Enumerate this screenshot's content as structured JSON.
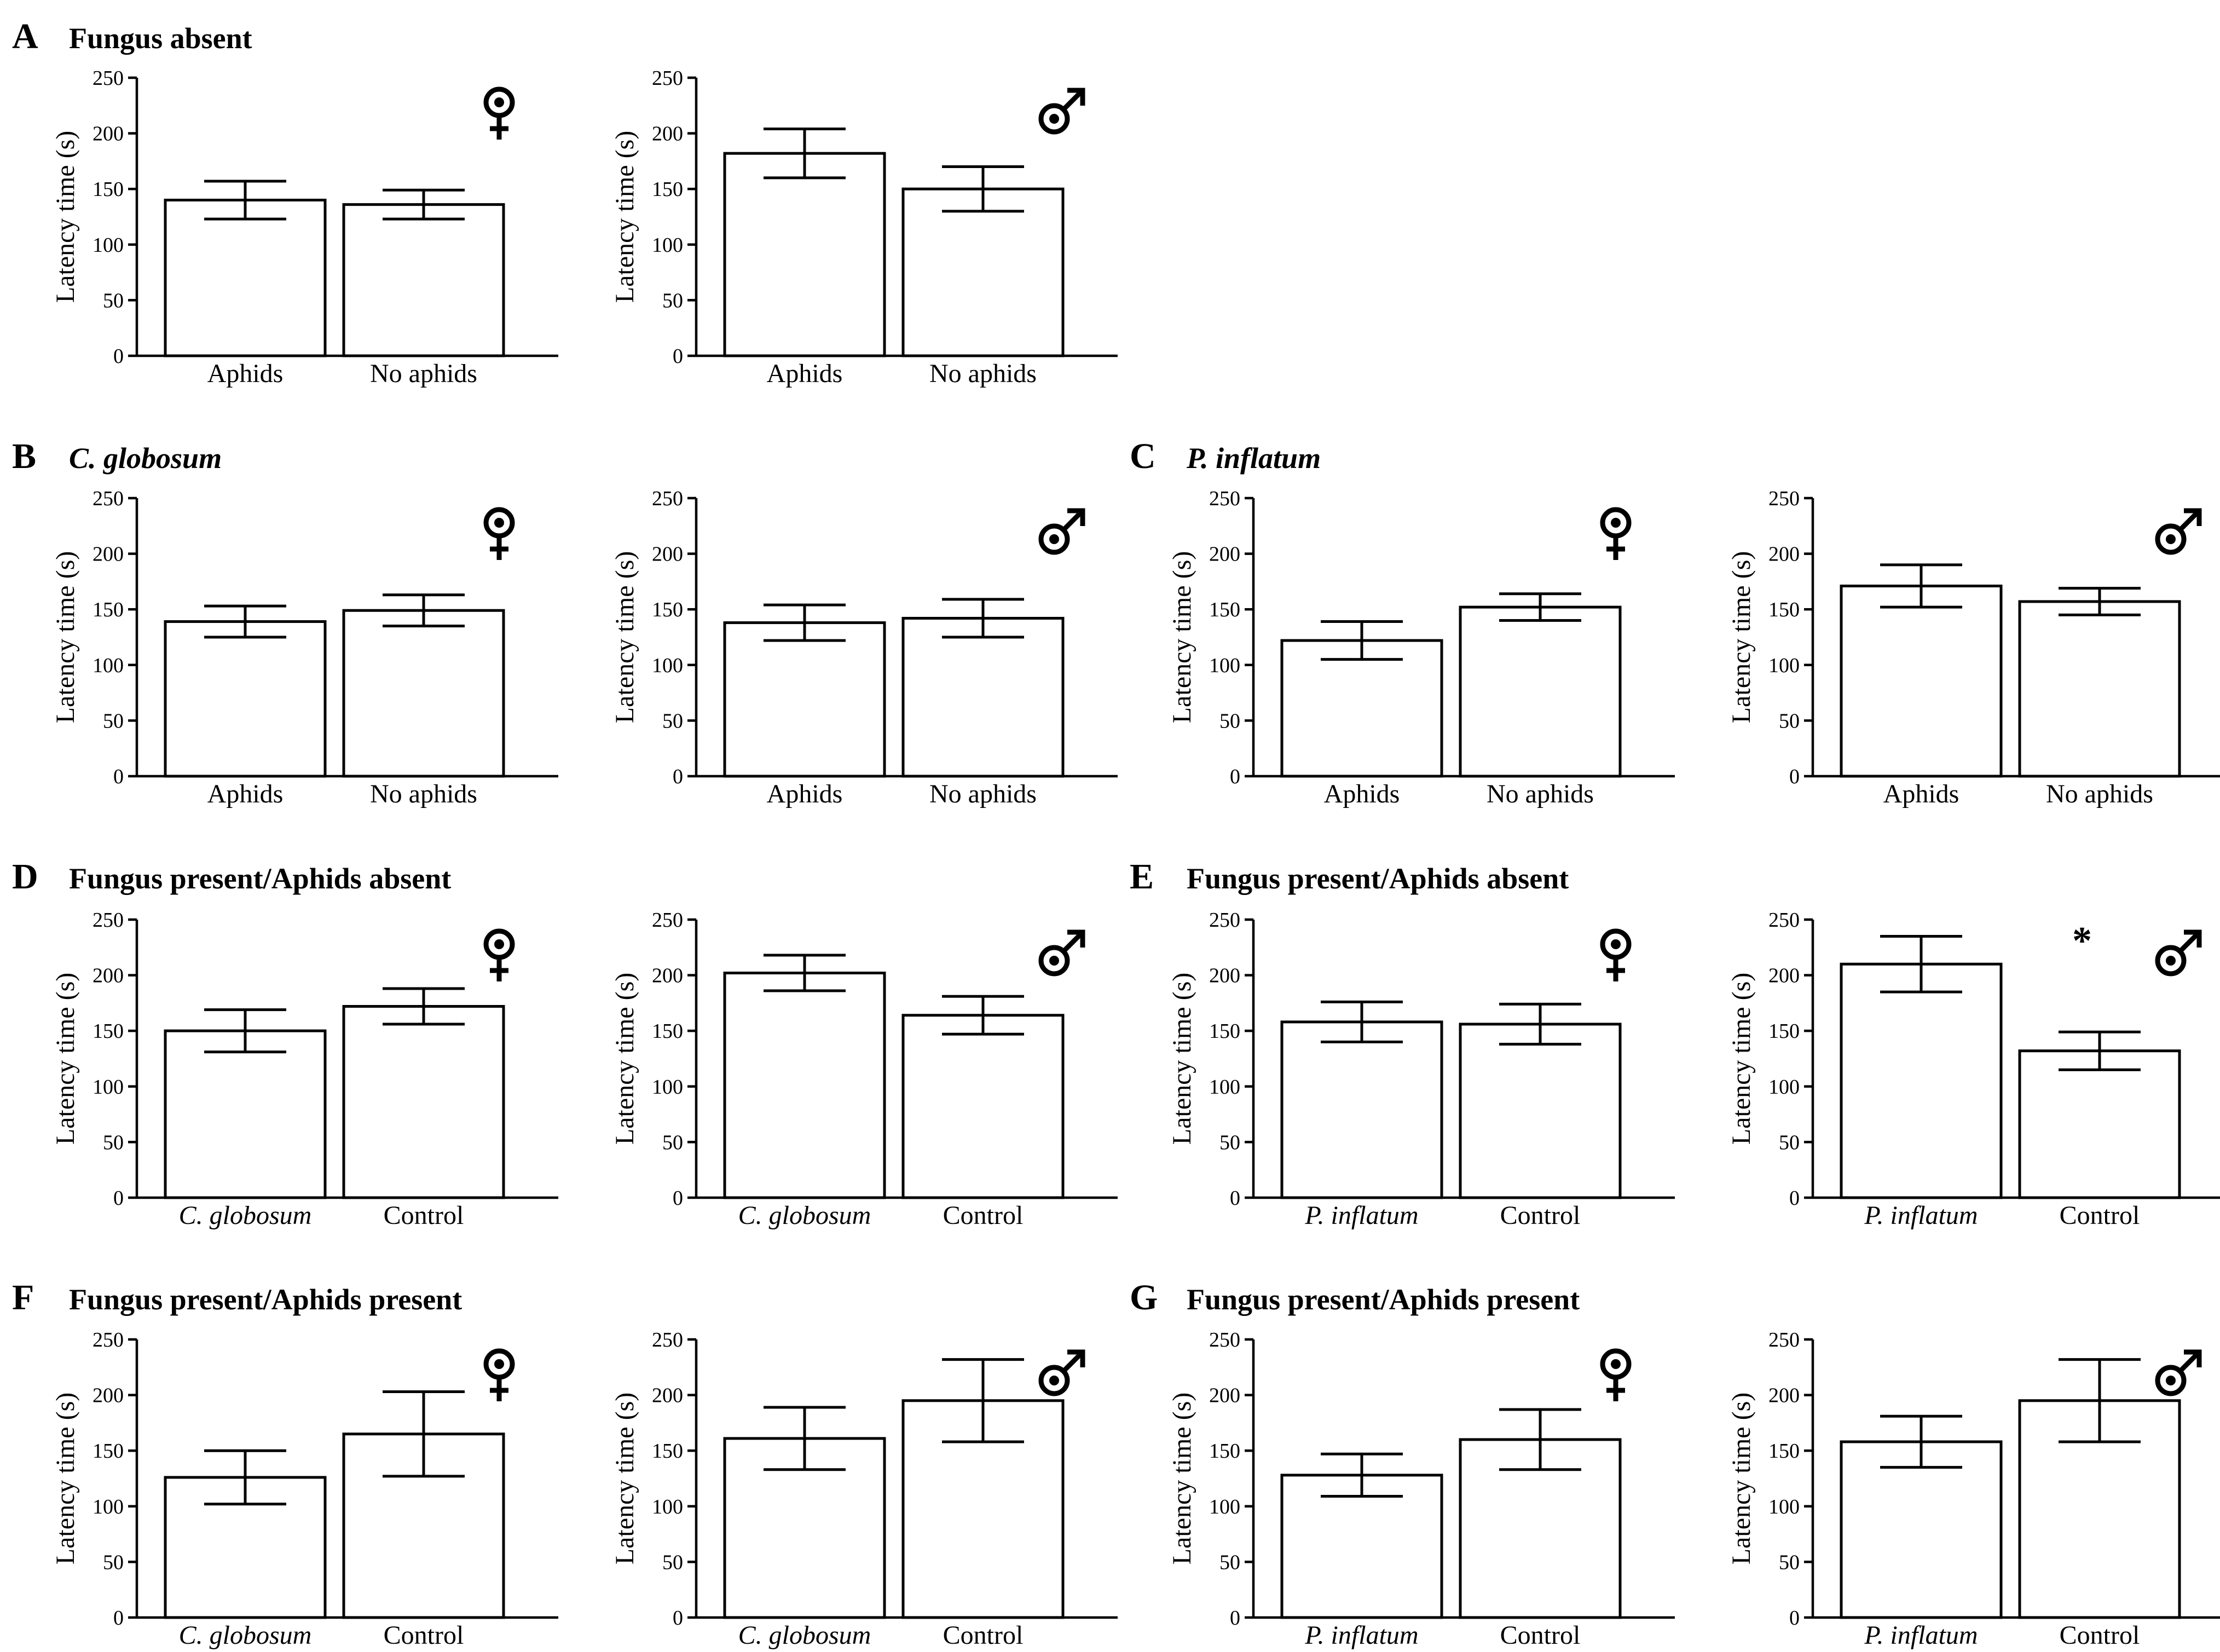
{
  "figure": {
    "y_axis_label": "Latency time (s)",
    "y_ticks": [
      0,
      50,
      100,
      150,
      200,
      250
    ],
    "panels": [
      {
        "letter": "A",
        "title": "Fungus absent",
        "title_italic": false
      },
      {
        "letter": "B",
        "title": "C. globosum",
        "title_italic": true
      },
      {
        "letter": "C",
        "title": "P. inflatum",
        "title_italic": true
      },
      {
        "letter": "D",
        "title": "Fungus present/Aphids absent",
        "title_italic": false
      },
      {
        "letter": "E",
        "title": "Fungus present/Aphids absent",
        "title_italic": false
      },
      {
        "letter": "F",
        "title": "Fungus present/Aphids present",
        "title_italic": false
      },
      {
        "letter": "G",
        "title": "Fungus present/Aphids present",
        "title_italic": false
      }
    ]
  },
  "chart_data": [
    {
      "id": "A-female",
      "panel": "A",
      "sex": "female",
      "type": "bar",
      "ylim": [
        0,
        250
      ],
      "ylabel": "Latency time (s)",
      "categories": [
        "Aphids",
        "No aphids"
      ],
      "italic_categories": [
        false,
        false
      ],
      "values": [
        140,
        136
      ],
      "errors": [
        17,
        13
      ],
      "significance": ""
    },
    {
      "id": "A-male",
      "panel": "A",
      "sex": "male",
      "type": "bar",
      "ylim": [
        0,
        250
      ],
      "ylabel": "Latency time (s)",
      "categories": [
        "Aphids",
        "No aphids"
      ],
      "italic_categories": [
        false,
        false
      ],
      "values": [
        182,
        150
      ],
      "errors": [
        22,
        20
      ],
      "significance": ""
    },
    {
      "id": "B-female",
      "panel": "B",
      "sex": "female",
      "type": "bar",
      "ylim": [
        0,
        250
      ],
      "ylabel": "Latency time (s)",
      "categories": [
        "Aphids",
        "No aphids"
      ],
      "italic_categories": [
        false,
        false
      ],
      "values": [
        139,
        149
      ],
      "errors": [
        14,
        14
      ],
      "significance": ""
    },
    {
      "id": "B-male",
      "panel": "B",
      "sex": "male",
      "type": "bar",
      "ylim": [
        0,
        250
      ],
      "ylabel": "Latency time (s)",
      "categories": [
        "Aphids",
        "No aphids"
      ],
      "italic_categories": [
        false,
        false
      ],
      "values": [
        138,
        142
      ],
      "errors": [
        16,
        17
      ],
      "significance": ""
    },
    {
      "id": "C-female",
      "panel": "C",
      "sex": "female",
      "type": "bar",
      "ylim": [
        0,
        250
      ],
      "ylabel": "Latency time (s)",
      "categories": [
        "Aphids",
        "No aphids"
      ],
      "italic_categories": [
        false,
        false
      ],
      "values": [
        122,
        152
      ],
      "errors": [
        17,
        12
      ],
      "significance": ""
    },
    {
      "id": "C-male",
      "panel": "C",
      "sex": "male",
      "type": "bar",
      "ylim": [
        0,
        250
      ],
      "ylabel": "Latency time (s)",
      "categories": [
        "Aphids",
        "No aphids"
      ],
      "italic_categories": [
        false,
        false
      ],
      "values": [
        171,
        157
      ],
      "errors": [
        19,
        12
      ],
      "significance": ""
    },
    {
      "id": "D-female",
      "panel": "D",
      "sex": "female",
      "type": "bar",
      "ylim": [
        0,
        250
      ],
      "ylabel": "Latency time (s)",
      "categories": [
        "C. globosum",
        "Control"
      ],
      "italic_categories": [
        true,
        false
      ],
      "values": [
        150,
        172
      ],
      "errors": [
        19,
        16
      ],
      "significance": ""
    },
    {
      "id": "D-male",
      "panel": "D",
      "sex": "male",
      "type": "bar",
      "ylim": [
        0,
        250
      ],
      "ylabel": "Latency time (s)",
      "categories": [
        "C. globosum",
        "Control"
      ],
      "italic_categories": [
        true,
        false
      ],
      "values": [
        202,
        164
      ],
      "errors": [
        16,
        17
      ],
      "significance": ""
    },
    {
      "id": "E-female",
      "panel": "E",
      "sex": "female",
      "type": "bar",
      "ylim": [
        0,
        250
      ],
      "ylabel": "Latency time (s)",
      "categories": [
        "P. inflatum",
        "Control"
      ],
      "italic_categories": [
        true,
        false
      ],
      "values": [
        158,
        156
      ],
      "errors": [
        18,
        18
      ],
      "significance": ""
    },
    {
      "id": "E-male",
      "panel": "E",
      "sex": "male",
      "type": "bar",
      "ylim": [
        0,
        250
      ],
      "ylabel": "Latency time (s)",
      "categories": [
        "P. inflatum",
        "Control"
      ],
      "italic_categories": [
        true,
        false
      ],
      "values": [
        210,
        132
      ],
      "errors": [
        25,
        17
      ],
      "significance": "*"
    },
    {
      "id": "F-female",
      "panel": "F",
      "sex": "female",
      "type": "bar",
      "ylim": [
        0,
        250
      ],
      "ylabel": "Latency time (s)",
      "categories": [
        "C. globosum",
        "Control"
      ],
      "italic_categories": [
        true,
        false
      ],
      "values": [
        126,
        165
      ],
      "errors": [
        24,
        38
      ],
      "significance": ""
    },
    {
      "id": "F-male",
      "panel": "F",
      "sex": "male",
      "type": "bar",
      "ylim": [
        0,
        250
      ],
      "ylabel": "Latency time (s)",
      "categories": [
        "C. globosum",
        "Control"
      ],
      "italic_categories": [
        true,
        false
      ],
      "values": [
        161,
        195
      ],
      "errors": [
        28,
        37
      ],
      "significance": ""
    },
    {
      "id": "G-female",
      "panel": "G",
      "sex": "female",
      "type": "bar",
      "ylim": [
        0,
        250
      ],
      "ylabel": "Latency time (s)",
      "categories": [
        "P. inflatum",
        "Control"
      ],
      "italic_categories": [
        true,
        false
      ],
      "values": [
        128,
        160
      ],
      "errors": [
        19,
        27
      ],
      "significance": ""
    },
    {
      "id": "G-male",
      "panel": "G",
      "sex": "male",
      "type": "bar",
      "ylim": [
        0,
        250
      ],
      "ylabel": "Latency time (s)",
      "categories": [
        "P. inflatum",
        "Control"
      ],
      "italic_categories": [
        true,
        false
      ],
      "values": [
        158,
        195
      ],
      "errors": [
        23,
        37
      ],
      "significance": ""
    }
  ]
}
